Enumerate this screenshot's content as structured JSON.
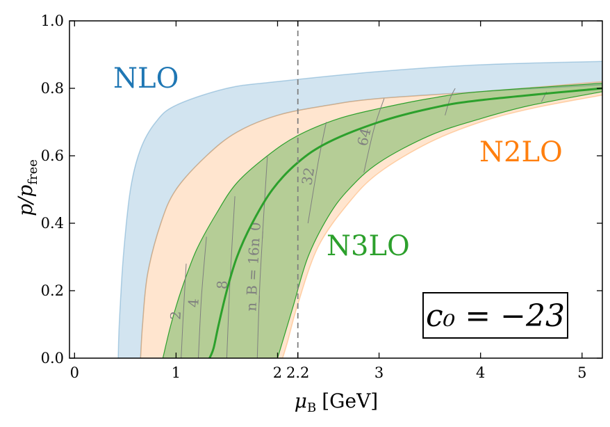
{
  "chart_data": {
    "type": "area",
    "xlabel_main": "μ",
    "xlabel_sub": "B",
    "xlabel_unit": "[GeV]",
    "ylabel_main": "p/p",
    "ylabel_sub": "free",
    "xlim": [
      -0.05,
      5.2
    ],
    "ylim": [
      0.0,
      1.0
    ],
    "x_ticks": [
      0,
      1,
      2,
      2.2,
      3,
      4,
      5
    ],
    "x_tick_labels": [
      "0",
      "1",
      "2",
      "2.2",
      "3",
      "4",
      "5"
    ],
    "y_ticks": [
      0.0,
      0.2,
      0.4,
      0.6,
      0.8,
      1.0
    ],
    "y_tick_labels": [
      "0.0",
      "0.2",
      "0.4",
      "0.6",
      "0.8",
      "1.0"
    ],
    "vline_x": 2.2,
    "annotation": "c₀ = −23",
    "bands": [
      {
        "name": "NLO",
        "color": "#1f77b4",
        "fill_opacity": 0.2,
        "lower_edge": [
          [
            0.43,
            0
          ],
          [
            0.44,
            0.1
          ],
          [
            0.48,
            0.3
          ],
          [
            0.55,
            0.5
          ],
          [
            0.65,
            0.62
          ],
          [
            0.8,
            0.7
          ],
          [
            1.0,
            0.75
          ],
          [
            1.5,
            0.8
          ],
          [
            2.0,
            0.82
          ],
          [
            3.0,
            0.85
          ],
          [
            4.0,
            0.87
          ],
          [
            5.2,
            0.88
          ]
        ],
        "upper_edge": [
          [
            0.65,
            0
          ],
          [
            0.67,
            0.1
          ],
          [
            0.72,
            0.25
          ],
          [
            0.85,
            0.4
          ],
          [
            1.0,
            0.5
          ],
          [
            1.3,
            0.6
          ],
          [
            1.6,
            0.67
          ],
          [
            2.0,
            0.72
          ],
          [
            2.5,
            0.75
          ],
          [
            3.0,
            0.77
          ],
          [
            4.0,
            0.79
          ],
          [
            5.2,
            0.81
          ]
        ]
      },
      {
        "name": "N2LO",
        "color": "#ff7f0e",
        "fill_opacity": 0.2,
        "lower_edge": [
          [
            0.65,
            0
          ],
          [
            0.67,
            0.1
          ],
          [
            0.72,
            0.25
          ],
          [
            0.85,
            0.4
          ],
          [
            1.0,
            0.5
          ],
          [
            1.3,
            0.6
          ],
          [
            1.6,
            0.67
          ],
          [
            2.0,
            0.72
          ],
          [
            2.5,
            0.75
          ],
          [
            3.0,
            0.77
          ],
          [
            4.0,
            0.79
          ],
          [
            5.2,
            0.82
          ]
        ],
        "upper_edge": [
          [
            2.05,
            0
          ],
          [
            2.1,
            0.05
          ],
          [
            2.2,
            0.16
          ],
          [
            2.4,
            0.33
          ],
          [
            2.7,
            0.46
          ],
          [
            3.0,
            0.55
          ],
          [
            3.5,
            0.64
          ],
          [
            4.0,
            0.7
          ],
          [
            4.5,
            0.74
          ],
          [
            5.2,
            0.78
          ]
        ]
      },
      {
        "name": "N3LO",
        "color": "#2ca02c",
        "fill_opacity": 0.35,
        "lower_edge": [
          [
            0.87,
            0
          ],
          [
            0.95,
            0.1
          ],
          [
            1.05,
            0.2
          ],
          [
            1.2,
            0.32
          ],
          [
            1.4,
            0.43
          ],
          [
            1.6,
            0.52
          ],
          [
            1.9,
            0.6
          ],
          [
            2.2,
            0.66
          ],
          [
            2.6,
            0.71
          ],
          [
            3.0,
            0.74
          ],
          [
            3.5,
            0.77
          ],
          [
            4.0,
            0.79
          ],
          [
            5.2,
            0.815
          ]
        ],
        "upper_edge": [
          [
            2.0,
            0
          ],
          [
            2.05,
            0.05
          ],
          [
            2.15,
            0.15
          ],
          [
            2.3,
            0.3
          ],
          [
            2.5,
            0.42
          ],
          [
            2.7,
            0.5
          ],
          [
            3.0,
            0.58
          ],
          [
            3.5,
            0.66
          ],
          [
            4.0,
            0.71
          ],
          [
            4.5,
            0.75
          ],
          [
            5.2,
            0.79
          ]
        ]
      }
    ],
    "central_line": {
      "name": "N3LO central",
      "color": "#2ca02c",
      "points": [
        [
          1.33,
          0
        ],
        [
          1.37,
          0.03
        ],
        [
          1.42,
          0.1
        ],
        [
          1.5,
          0.2
        ],
        [
          1.6,
          0.3
        ],
        [
          1.75,
          0.4
        ],
        [
          1.95,
          0.5
        ],
        [
          2.2,
          0.58
        ],
        [
          2.5,
          0.64
        ],
        [
          3.0,
          0.7
        ],
        [
          3.5,
          0.74
        ],
        [
          4.0,
          0.765
        ],
        [
          5.2,
          0.8
        ]
      ]
    },
    "contours": [
      {
        "label": "2",
        "points": [
          [
            1.05,
            0
          ],
          [
            1.07,
            0.12
          ],
          [
            1.1,
            0.28
          ]
        ]
      },
      {
        "label": "4",
        "points": [
          [
            1.22,
            0
          ],
          [
            1.25,
            0.18
          ],
          [
            1.3,
            0.36
          ]
        ]
      },
      {
        "label": "8",
        "points": [
          [
            1.5,
            0
          ],
          [
            1.53,
            0.22
          ],
          [
            1.58,
            0.48
          ]
        ]
      },
      {
        "label": "n_B = 16n_0",
        "points": [
          [
            1.8,
            0
          ],
          [
            1.83,
            0.25
          ],
          [
            1.9,
            0.6
          ]
        ]
      },
      {
        "label": "32",
        "points": [
          [
            2.3,
            0.4
          ],
          [
            2.4,
            0.58
          ],
          [
            2.48,
            0.7
          ]
        ]
      },
      {
        "label": "64",
        "points": [
          [
            2.85,
            0.55
          ],
          [
            2.95,
            0.68
          ],
          [
            3.05,
            0.77
          ]
        ]
      },
      {
        "label": "",
        "points": [
          [
            3.65,
            0.72
          ],
          [
            3.7,
            0.77
          ],
          [
            3.75,
            0.8
          ]
        ]
      },
      {
        "label": "",
        "points": [
          [
            4.6,
            0.76
          ],
          [
            4.65,
            0.79
          ]
        ]
      }
    ]
  }
}
